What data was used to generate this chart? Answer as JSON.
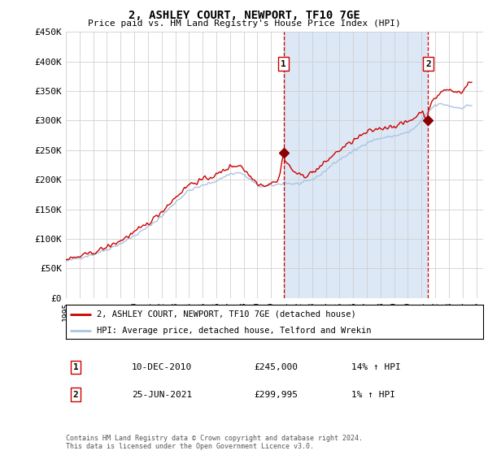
{
  "title": "2, ASHLEY COURT, NEWPORT, TF10 7GE",
  "subtitle": "Price paid vs. HM Land Registry's House Price Index (HPI)",
  "footer": "Contains HM Land Registry data © Crown copyright and database right 2024.\nThis data is licensed under the Open Government Licence v3.0.",
  "legend_line1": "2, ASHLEY COURT, NEWPORT, TF10 7GE (detached house)",
  "legend_line2": "HPI: Average price, detached house, Telford and Wrekin",
  "annotation1_date": "10-DEC-2010",
  "annotation1_price": "£245,000",
  "annotation1_hpi": "14% ↑ HPI",
  "annotation2_date": "25-JUN-2021",
  "annotation2_price": "£299,995",
  "annotation2_hpi": "1% ↑ HPI",
  "hpi_color": "#aac4e0",
  "price_color": "#cc0000",
  "dot_color": "#8b0000",
  "vline_color": "#cc0000",
  "shade_color": "#dce8f5",
  "background_color": "#ffffff",
  "grid_color": "#d0d0d0",
  "ylim": [
    0,
    450000
  ],
  "yticks": [
    0,
    50000,
    100000,
    150000,
    200000,
    250000,
    300000,
    350000,
    400000,
    450000
  ],
  "sale1_x": 2010.92,
  "sale1_y": 245000,
  "sale2_x": 2021.48,
  "sale2_y": 299995,
  "xlim_start": 1995.0,
  "xlim_end": 2025.5
}
